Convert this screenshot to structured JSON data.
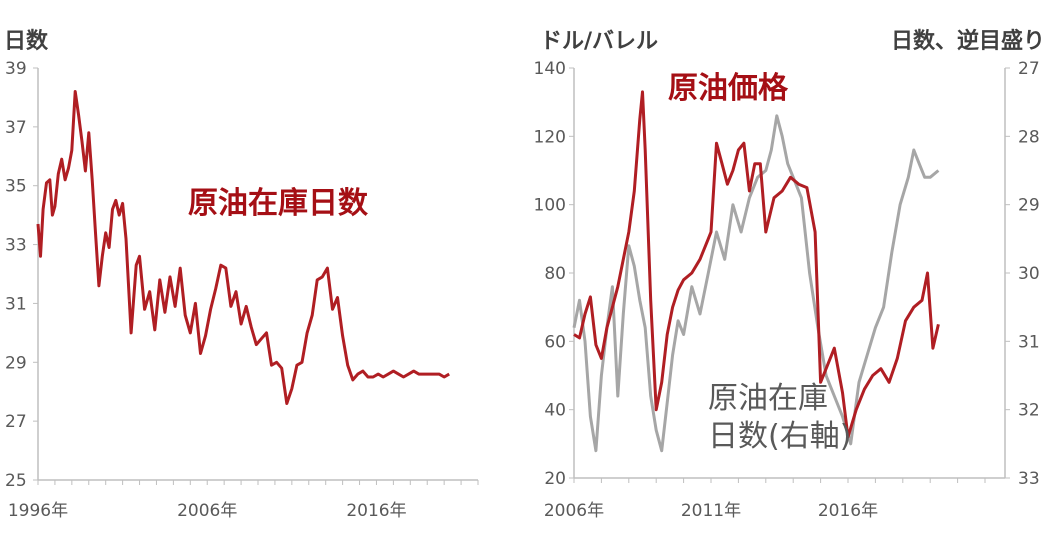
{
  "colors": {
    "crude": "#b01e23",
    "stocks": "#a6a6a6",
    "axis": "#bfbfbf",
    "text": "#595959"
  },
  "chart_data": [
    {
      "type": "line",
      "title": "",
      "ylabel": "日数",
      "xlim": [
        1996,
        2022
      ],
      "ylim": [
        25,
        39
      ],
      "yticks": [
        25,
        27,
        29,
        31,
        33,
        35,
        37,
        39
      ],
      "xticks": [
        {
          "value": 1996,
          "label": "1996年"
        },
        {
          "value": 2006,
          "label": "2006年"
        },
        {
          "value": 2016,
          "label": "2016年"
        }
      ],
      "annotations": [
        {
          "text": "原油在庫日数",
          "color": "#b01e23"
        }
      ],
      "series": [
        {
          "name": "原油在庫日数",
          "color": "#b01e23",
          "x": [
            1996.0,
            1996.15,
            1996.3,
            1996.5,
            1996.7,
            1996.85,
            1997.0,
            1997.2,
            1997.4,
            1997.6,
            1997.8,
            1998.0,
            1998.2,
            1998.4,
            1998.6,
            1998.8,
            1999.0,
            1999.2,
            1999.4,
            1999.6,
            1999.8,
            2000.0,
            2000.2,
            2000.4,
            2000.6,
            2000.8,
            2001.0,
            2001.2,
            2001.5,
            2001.8,
            2002.0,
            2002.3,
            2002.6,
            2002.9,
            2003.2,
            2003.5,
            2003.8,
            2004.1,
            2004.4,
            2004.7,
            2005.0,
            2005.3,
            2005.6,
            2005.9,
            2006.2,
            2006.5,
            2006.8,
            2007.1,
            2007.4,
            2007.7,
            2008.0,
            2008.3,
            2008.6,
            2008.9,
            2009.2,
            2009.5,
            2009.8,
            2010.1,
            2010.4,
            2010.7,
            2011.0,
            2011.3,
            2011.6,
            2011.9,
            2012.2,
            2012.5,
            2012.8,
            2013.1,
            2013.4,
            2013.7,
            2014.0,
            2014.3,
            2014.6,
            2014.9,
            2015.2,
            2015.5,
            2015.8,
            2016.1,
            2016.4,
            2016.7,
            2017.0,
            2017.3,
            2017.6,
            2017.9,
            2018.2,
            2018.5,
            2018.8,
            2019.1,
            2019.4,
            2019.7,
            2020.0,
            2020.3
          ],
          "values": [
            33.7,
            32.6,
            34.2,
            35.1,
            35.2,
            34.0,
            34.3,
            35.4,
            35.9,
            35.2,
            35.6,
            36.2,
            38.2,
            37.4,
            36.5,
            35.5,
            36.8,
            35.2,
            33.4,
            31.6,
            32.6,
            33.4,
            32.9,
            34.2,
            34.5,
            34.0,
            34.4,
            33.2,
            30.0,
            32.3,
            32.6,
            30.8,
            31.4,
            30.1,
            31.8,
            30.7,
            31.9,
            30.9,
            32.2,
            30.6,
            30.0,
            31.0,
            29.3,
            29.9,
            30.8,
            31.5,
            32.3,
            32.2,
            30.9,
            31.4,
            30.3,
            30.9,
            30.2,
            29.6,
            29.8,
            30.0,
            28.9,
            29.0,
            28.8,
            27.6,
            28.1,
            28.9,
            29.0,
            30.0,
            30.6,
            31.8,
            31.9,
            32.2,
            30.8,
            31.2,
            29.9,
            28.9,
            28.4,
            28.6,
            28.7,
            28.5,
            28.5,
            28.6,
            28.5,
            28.6,
            28.7,
            28.6,
            28.5,
            28.6,
            28.7,
            28.6,
            28.6,
            28.6,
            28.6,
            28.6,
            28.5,
            28.6
          ]
        }
      ]
    },
    {
      "type": "line",
      "title": "",
      "ylabel": "ドル/バレル",
      "y2label": "日数、逆目盛り",
      "xlim": [
        2006,
        2021
      ],
      "ylim": [
        20,
        140
      ],
      "y2lim": [
        33,
        27
      ],
      "yticks": [
        20,
        40,
        60,
        80,
        100,
        120,
        140
      ],
      "y2ticks": [
        27,
        28,
        29,
        30,
        31,
        32,
        33
      ],
      "xticks": [
        {
          "value": 2006,
          "label": "2006年"
        },
        {
          "value": 2011,
          "label": "2011年"
        },
        {
          "value": 2016,
          "label": "2016年"
        }
      ],
      "annotations": [
        {
          "text": "原油価格",
          "color": "#b01e23"
        },
        {
          "text": "原油在庫",
          "color": "#595959"
        },
        {
          "text": "日数(右軸)",
          "color": "#595959"
        }
      ],
      "series": [
        {
          "name": "原油価格",
          "axis": "left",
          "color": "#b01e23",
          "x": [
            2006.0,
            2006.2,
            2006.4,
            2006.6,
            2006.8,
            2007.0,
            2007.2,
            2007.4,
            2007.6,
            2007.8,
            2008.0,
            2008.2,
            2008.4,
            2008.5,
            2008.6,
            2008.8,
            2009.0,
            2009.2,
            2009.4,
            2009.6,
            2009.8,
            2010.0,
            2010.3,
            2010.6,
            2010.9,
            2011.0,
            2011.2,
            2011.4,
            2011.6,
            2011.8,
            2012.0,
            2012.2,
            2012.4,
            2012.6,
            2012.8,
            2013.0,
            2013.3,
            2013.6,
            2013.9,
            2014.2,
            2014.5,
            2014.8,
            2015.0,
            2015.2,
            2015.5,
            2015.8,
            2016.0,
            2016.3,
            2016.6,
            2016.9,
            2017.2,
            2017.5,
            2017.8,
            2018.1,
            2018.4,
            2018.7,
            2018.9,
            2019.1,
            2019.3
          ],
          "values": [
            62,
            61,
            68,
            73,
            59,
            55,
            64,
            70,
            76,
            84,
            92,
            104,
            125,
            133,
            116,
            72,
            40,
            48,
            62,
            70,
            75,
            78,
            80,
            84,
            90,
            92,
            118,
            112,
            106,
            110,
            116,
            118,
            104,
            112,
            112,
            92,
            102,
            104,
            108,
            106,
            105,
            92,
            48,
            52,
            58,
            45,
            32,
            40,
            46,
            50,
            52,
            48,
            55,
            66,
            70,
            72,
            80,
            58,
            65
          ]
        },
        {
          "name": "原油在庫日数(右軸)",
          "axis": "right",
          "color": "#a6a6a6",
          "x": [
            2006.0,
            2006.2,
            2006.4,
            2006.6,
            2006.8,
            2007.0,
            2007.2,
            2007.4,
            2007.6,
            2007.8,
            2008.0,
            2008.2,
            2008.4,
            2008.6,
            2008.8,
            2009.0,
            2009.2,
            2009.4,
            2009.6,
            2009.8,
            2010.0,
            2010.3,
            2010.6,
            2010.9,
            2011.2,
            2011.5,
            2011.8,
            2012.1,
            2012.4,
            2012.7,
            2013.0,
            2013.2,
            2013.4,
            2013.6,
            2013.8,
            2014.0,
            2014.3,
            2014.6,
            2014.9,
            2015.2,
            2015.5,
            2015.8,
            2016.1,
            2016.4,
            2016.7,
            2017.0,
            2017.3,
            2017.6,
            2017.9,
            2018.2,
            2018.4,
            2018.6,
            2018.8,
            2019.0,
            2019.3
          ],
          "values": [
            30.8,
            30.4,
            31.0,
            32.1,
            32.6,
            31.5,
            30.8,
            30.2,
            31.8,
            30.6,
            29.6,
            29.9,
            30.4,
            30.8,
            31.8,
            32.3,
            32.6,
            31.9,
            31.2,
            30.7,
            30.9,
            30.2,
            30.6,
            30.0,
            29.4,
            29.8,
            29.0,
            29.4,
            28.9,
            28.6,
            28.5,
            28.2,
            27.7,
            28.0,
            28.4,
            28.6,
            28.9,
            30.0,
            30.8,
            31.5,
            31.8,
            32.1,
            32.5,
            31.6,
            31.2,
            30.8,
            30.5,
            29.7,
            29.0,
            28.6,
            28.2,
            28.4,
            28.6,
            28.6,
            28.5
          ]
        }
      ]
    }
  ]
}
